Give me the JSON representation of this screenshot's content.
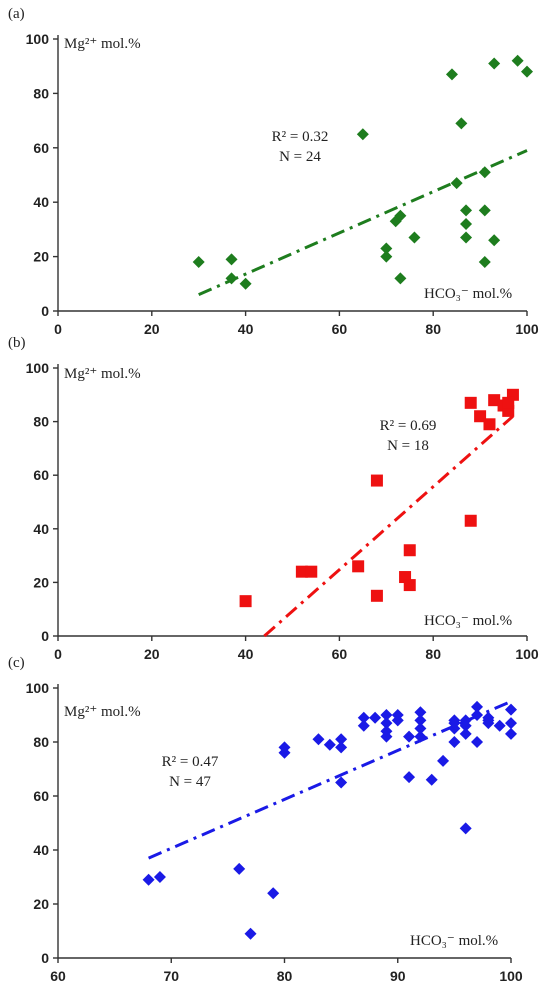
{
  "chart_data": [
    {
      "panel": "(a)",
      "type": "scatter",
      "ylabel": "Mg²⁺ mol.%",
      "xlabel": "HCO₃⁻ mol.%",
      "xlim": [
        0,
        100
      ],
      "ylim": [
        0,
        100
      ],
      "xticks": [
        0,
        20,
        40,
        60,
        80,
        100
      ],
      "yticks": [
        0,
        20,
        40,
        60,
        80,
        100
      ],
      "annotations": [
        "R² = 0.32",
        "N = 24"
      ],
      "color": "#1e7d1e",
      "marker": "diamond",
      "points": [
        [
          30,
          18
        ],
        [
          37,
          19
        ],
        [
          37,
          12
        ],
        [
          40,
          10
        ],
        [
          65,
          65
        ],
        [
          70,
          20
        ],
        [
          70,
          23
        ],
        [
          72,
          33
        ],
        [
          73,
          35
        ],
        [
          73,
          12
        ],
        [
          76,
          27
        ],
        [
          84,
          87
        ],
        [
          85,
          47
        ],
        [
          86,
          69
        ],
        [
          87,
          37
        ],
        [
          87,
          32
        ],
        [
          87,
          27
        ],
        [
          91,
          51
        ],
        [
          91,
          37
        ],
        [
          91,
          18
        ],
        [
          93,
          91
        ],
        [
          93,
          26
        ],
        [
          98,
          92
        ],
        [
          100,
          88
        ]
      ],
      "trendline": {
        "x": [
          30,
          100
        ],
        "y": [
          6,
          59
        ]
      }
    },
    {
      "panel": "(b)",
      "type": "scatter",
      "ylabel": "Mg²⁺ mol.%",
      "xlabel": "HCO₃⁻ mol.%",
      "xlim": [
        0,
        100
      ],
      "ylim": [
        0,
        100
      ],
      "xticks": [
        0,
        20,
        40,
        60,
        80,
        100
      ],
      "yticks": [
        0,
        20,
        40,
        60,
        80,
        100
      ],
      "annotations": [
        "R² = 0.69",
        "N = 18"
      ],
      "color": "#ee1111",
      "marker": "square",
      "points": [
        [
          40,
          13
        ],
        [
          52,
          24
        ],
        [
          54,
          24
        ],
        [
          64,
          26
        ],
        [
          68,
          58
        ],
        [
          68,
          15
        ],
        [
          74,
          22
        ],
        [
          75,
          32
        ],
        [
          75,
          19
        ],
        [
          88,
          87
        ],
        [
          88,
          43
        ],
        [
          90,
          82
        ],
        [
          92,
          79
        ],
        [
          93,
          88
        ],
        [
          95,
          86
        ],
        [
          96,
          84
        ],
        [
          97,
          90
        ],
        [
          96,
          87
        ]
      ],
      "trendline": {
        "x": [
          44,
          97
        ],
        "y": [
          0,
          82
        ]
      }
    },
    {
      "panel": "(c)",
      "type": "scatter",
      "ylabel": "Mg²⁺ mol.%",
      "xlabel": "HCO₃⁻ mol.%",
      "xlim": [
        60,
        100
      ],
      "ylim": [
        0,
        100
      ],
      "xticks": [
        60,
        70,
        80,
        90,
        100
      ],
      "yticks": [
        0,
        20,
        40,
        60,
        80,
        100
      ],
      "annotations": [
        "R² = 0.47",
        "N = 47"
      ],
      "color": "#1a1ae6",
      "marker": "diamond",
      "points": [
        [
          68,
          29
        ],
        [
          69,
          30
        ],
        [
          76,
          33
        ],
        [
          77,
          9
        ],
        [
          79,
          24
        ],
        [
          80,
          78
        ],
        [
          80,
          76
        ],
        [
          83,
          81
        ],
        [
          84,
          79
        ],
        [
          85,
          81
        ],
        [
          85,
          78
        ],
        [
          85,
          65
        ],
        [
          87,
          89
        ],
        [
          87,
          86
        ],
        [
          88,
          89
        ],
        [
          89,
          90
        ],
        [
          89,
          87
        ],
        [
          89,
          84
        ],
        [
          89,
          82
        ],
        [
          90,
          90
        ],
        [
          90,
          88
        ],
        [
          91,
          82
        ],
        [
          91,
          67
        ],
        [
          92,
          91
        ],
        [
          92,
          88
        ],
        [
          92,
          85
        ],
        [
          92,
          82
        ],
        [
          93,
          66
        ],
        [
          94,
          73
        ],
        [
          95,
          88
        ],
        [
          95,
          85
        ],
        [
          95,
          80
        ],
        [
          96,
          88
        ],
        [
          96,
          86
        ],
        [
          96,
          48
        ],
        [
          97,
          93
        ],
        [
          97,
          90
        ],
        [
          97,
          80
        ],
        [
          98,
          89
        ],
        [
          98,
          87
        ],
        [
          99,
          86
        ],
        [
          100,
          92
        ],
        [
          100,
          87
        ],
        [
          100,
          83
        ],
        [
          96,
          83
        ],
        [
          95,
          87
        ],
        [
          98,
          88
        ]
      ],
      "trendline": {
        "x": [
          68,
          100
        ],
        "y": [
          37,
          95
        ]
      }
    }
  ]
}
